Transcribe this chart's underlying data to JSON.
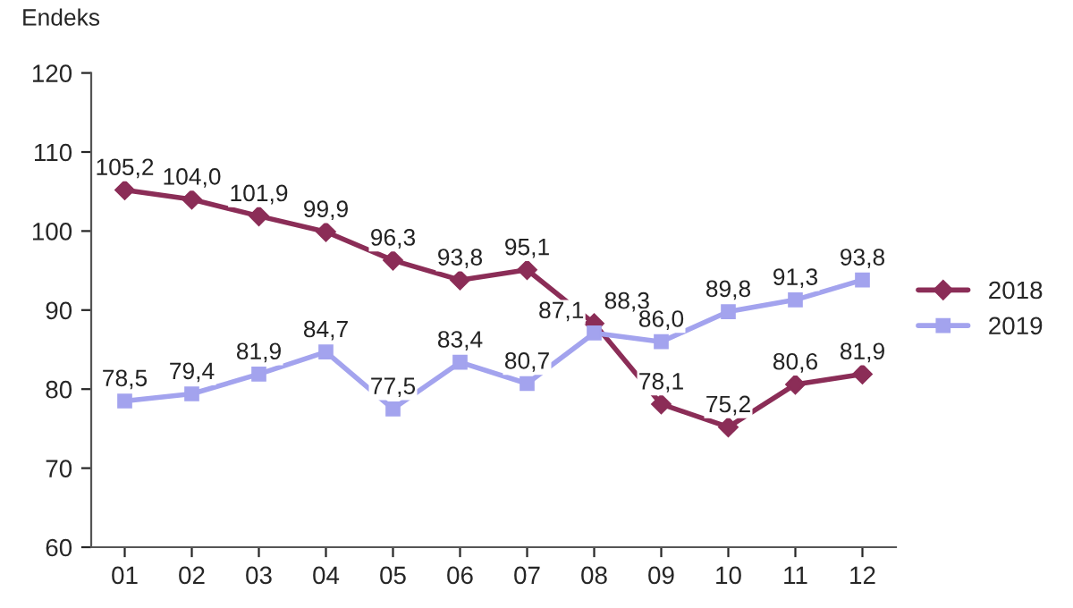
{
  "chart_data": {
    "type": "line",
    "ylabel": "Endeks",
    "categories": [
      "01",
      "02",
      "03",
      "04",
      "05",
      "06",
      "07",
      "08",
      "09",
      "10",
      "11",
      "12"
    ],
    "series": [
      {
        "name": "2018",
        "color": "#8b2d57",
        "marker": "diamond",
        "values": [
          105.2,
          104.0,
          101.9,
          99.9,
          96.3,
          93.8,
          95.1,
          88.3,
          78.1,
          75.2,
          80.6,
          81.9
        ],
        "value_labels": [
          "105,2",
          "104,0",
          "101,9",
          "99,9",
          "96,3",
          "93,8",
          "95,1",
          "88,3",
          "78,1",
          "75,2",
          "80,6",
          "81,9"
        ]
      },
      {
        "name": "2019",
        "color": "#a3a3ee",
        "marker": "square",
        "values": [
          78.5,
          79.4,
          81.9,
          84.7,
          77.5,
          83.4,
          80.7,
          87.1,
          86.0,
          89.8,
          91.3,
          93.8
        ],
        "value_labels": [
          "78,5",
          "79,4",
          "81,9",
          "84,7",
          "77,5",
          "83,4",
          "80,7",
          "87,1",
          "86,0",
          "89,8",
          "91,3",
          "93,8"
        ]
      }
    ],
    "ylim": [
      60,
      120
    ],
    "yticks": [
      60,
      70,
      80,
      90,
      100,
      110,
      120
    ],
    "grid": false,
    "legend": "right"
  }
}
